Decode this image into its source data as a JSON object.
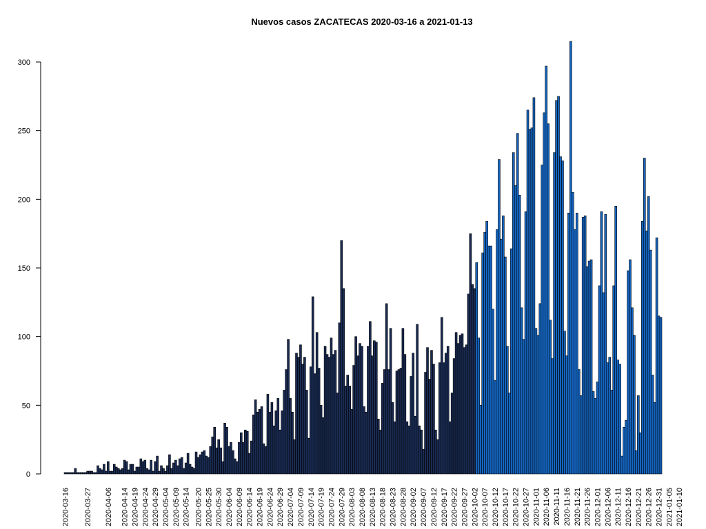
{
  "chart_data": {
    "type": "bar",
    "title": "Nuevos casos ZACATECAS 2020-03-16 a 2021-01-13",
    "xlabel": "",
    "ylabel": "",
    "ylim": [
      0,
      320
    ],
    "y_ticks": [
      0,
      50,
      100,
      150,
      200,
      250,
      300
    ],
    "start_date": "2020-03-16",
    "x_tick_labels": [
      "2020-03-16",
      "2020-03-27",
      "2020-04-06",
      "2020-04-14",
      "2020-04-19",
      "2020-04-24",
      "2020-04-29",
      "2020-05-04",
      "2020-05-09",
      "2020-05-14",
      "2020-05-20",
      "2020-05-25",
      "2020-05-30",
      "2020-06-04",
      "2020-06-09",
      "2020-06-14",
      "2020-06-19",
      "2020-06-24",
      "2020-06-29",
      "2020-07-04",
      "2020-07-09",
      "2020-07-14",
      "2020-07-19",
      "2020-07-24",
      "2020-07-29",
      "2020-08-03",
      "2020-08-08",
      "2020-08-13",
      "2020-08-18",
      "2020-08-23",
      "2020-08-28",
      "2020-09-02",
      "2020-09-07",
      "2020-09-12",
      "2020-09-17",
      "2020-09-22",
      "2020-09-27",
      "2020-10-02",
      "2020-10-07",
      "2020-10-12",
      "2020-10-17",
      "2020-10-22",
      "2020-10-27",
      "2020-11-01",
      "2020-11-06",
      "2020-11-11",
      "2020-11-16",
      "2020-11-21",
      "2020-11-26",
      "2020-12-01",
      "2020-12-06",
      "2020-12-11",
      "2020-12-16",
      "2020-12-21",
      "2020-12-26",
      "2020-12-31",
      "2021-01-05",
      "2021-01-10"
    ],
    "grid": false,
    "colors": {
      "early": "#1a2b52",
      "late": "#1565c0",
      "edge": "#000000"
    },
    "color_split_date": "2020-10-03",
    "values": [
      1,
      1,
      1,
      1,
      1,
      4,
      1,
      1,
      1,
      1,
      1,
      2,
      2,
      2,
      1,
      1,
      6,
      4,
      3,
      7,
      2,
      9,
      2,
      2,
      7,
      5,
      4,
      3,
      4,
      10,
      9,
      3,
      7,
      7,
      2,
      5,
      5,
      11,
      9,
      10,
      4,
      3,
      10,
      2,
      9,
      13,
      2,
      6,
      4,
      2,
      6,
      14,
      4,
      8,
      10,
      6,
      11,
      12,
      4,
      8,
      15,
      7,
      5,
      4,
      16,
      12,
      14,
      16,
      17,
      13,
      12,
      20,
      27,
      34,
      19,
      25,
      19,
      9,
      37,
      34,
      20,
      23,
      17,
      11,
      9,
      23,
      30,
      23,
      32,
      31,
      15,
      24,
      43,
      54,
      45,
      47,
      49,
      22,
      20,
      58,
      45,
      52,
      35,
      46,
      55,
      32,
      46,
      61,
      76,
      98,
      55,
      45,
      25,
      88,
      85,
      94,
      80,
      85,
      61,
      26,
      78,
      129,
      73,
      103,
      77,
      50,
      41,
      93,
      87,
      85,
      99,
      87,
      90,
      59,
      110,
      170,
      135,
      64,
      72,
      64,
      47,
      79,
      100,
      86,
      95,
      93,
      49,
      45,
      93,
      111,
      86,
      97,
      96,
      40,
      32,
      66,
      76,
      124,
      76,
      106,
      52,
      38,
      75,
      76,
      77,
      106,
      87,
      38,
      35,
      71,
      88,
      42,
      109,
      35,
      32,
      18,
      74,
      92,
      69,
      90,
      80,
      32,
      25,
      81,
      114,
      81,
      88,
      93,
      38,
      59,
      84,
      103,
      95,
      101,
      102,
      92,
      94,
      131,
      175,
      138,
      135,
      154,
      99,
      50,
      161,
      176,
      184,
      166,
      166,
      120,
      68,
      178,
      229,
      171,
      188,
      158,
      93,
      59,
      164,
      234,
      210,
      248,
      203,
      121,
      98,
      191,
      265,
      251,
      252,
      274,
      106,
      101,
      124,
      225,
      263,
      297,
      255,
      112,
      84,
      234,
      272,
      275,
      231,
      228,
      104,
      86,
      190,
      315,
      205,
      178,
      190,
      76,
      57,
      187,
      188,
      151,
      155,
      156,
      60,
      55,
      67,
      137,
      191,
      132,
      189,
      81,
      85,
      61,
      137,
      195,
      83,
      80,
      13,
      34,
      39,
      148,
      156,
      121,
      101,
      17,
      57,
      30,
      184,
      230,
      177,
      202,
      163,
      72,
      52,
      172,
      115,
      114
    ]
  }
}
